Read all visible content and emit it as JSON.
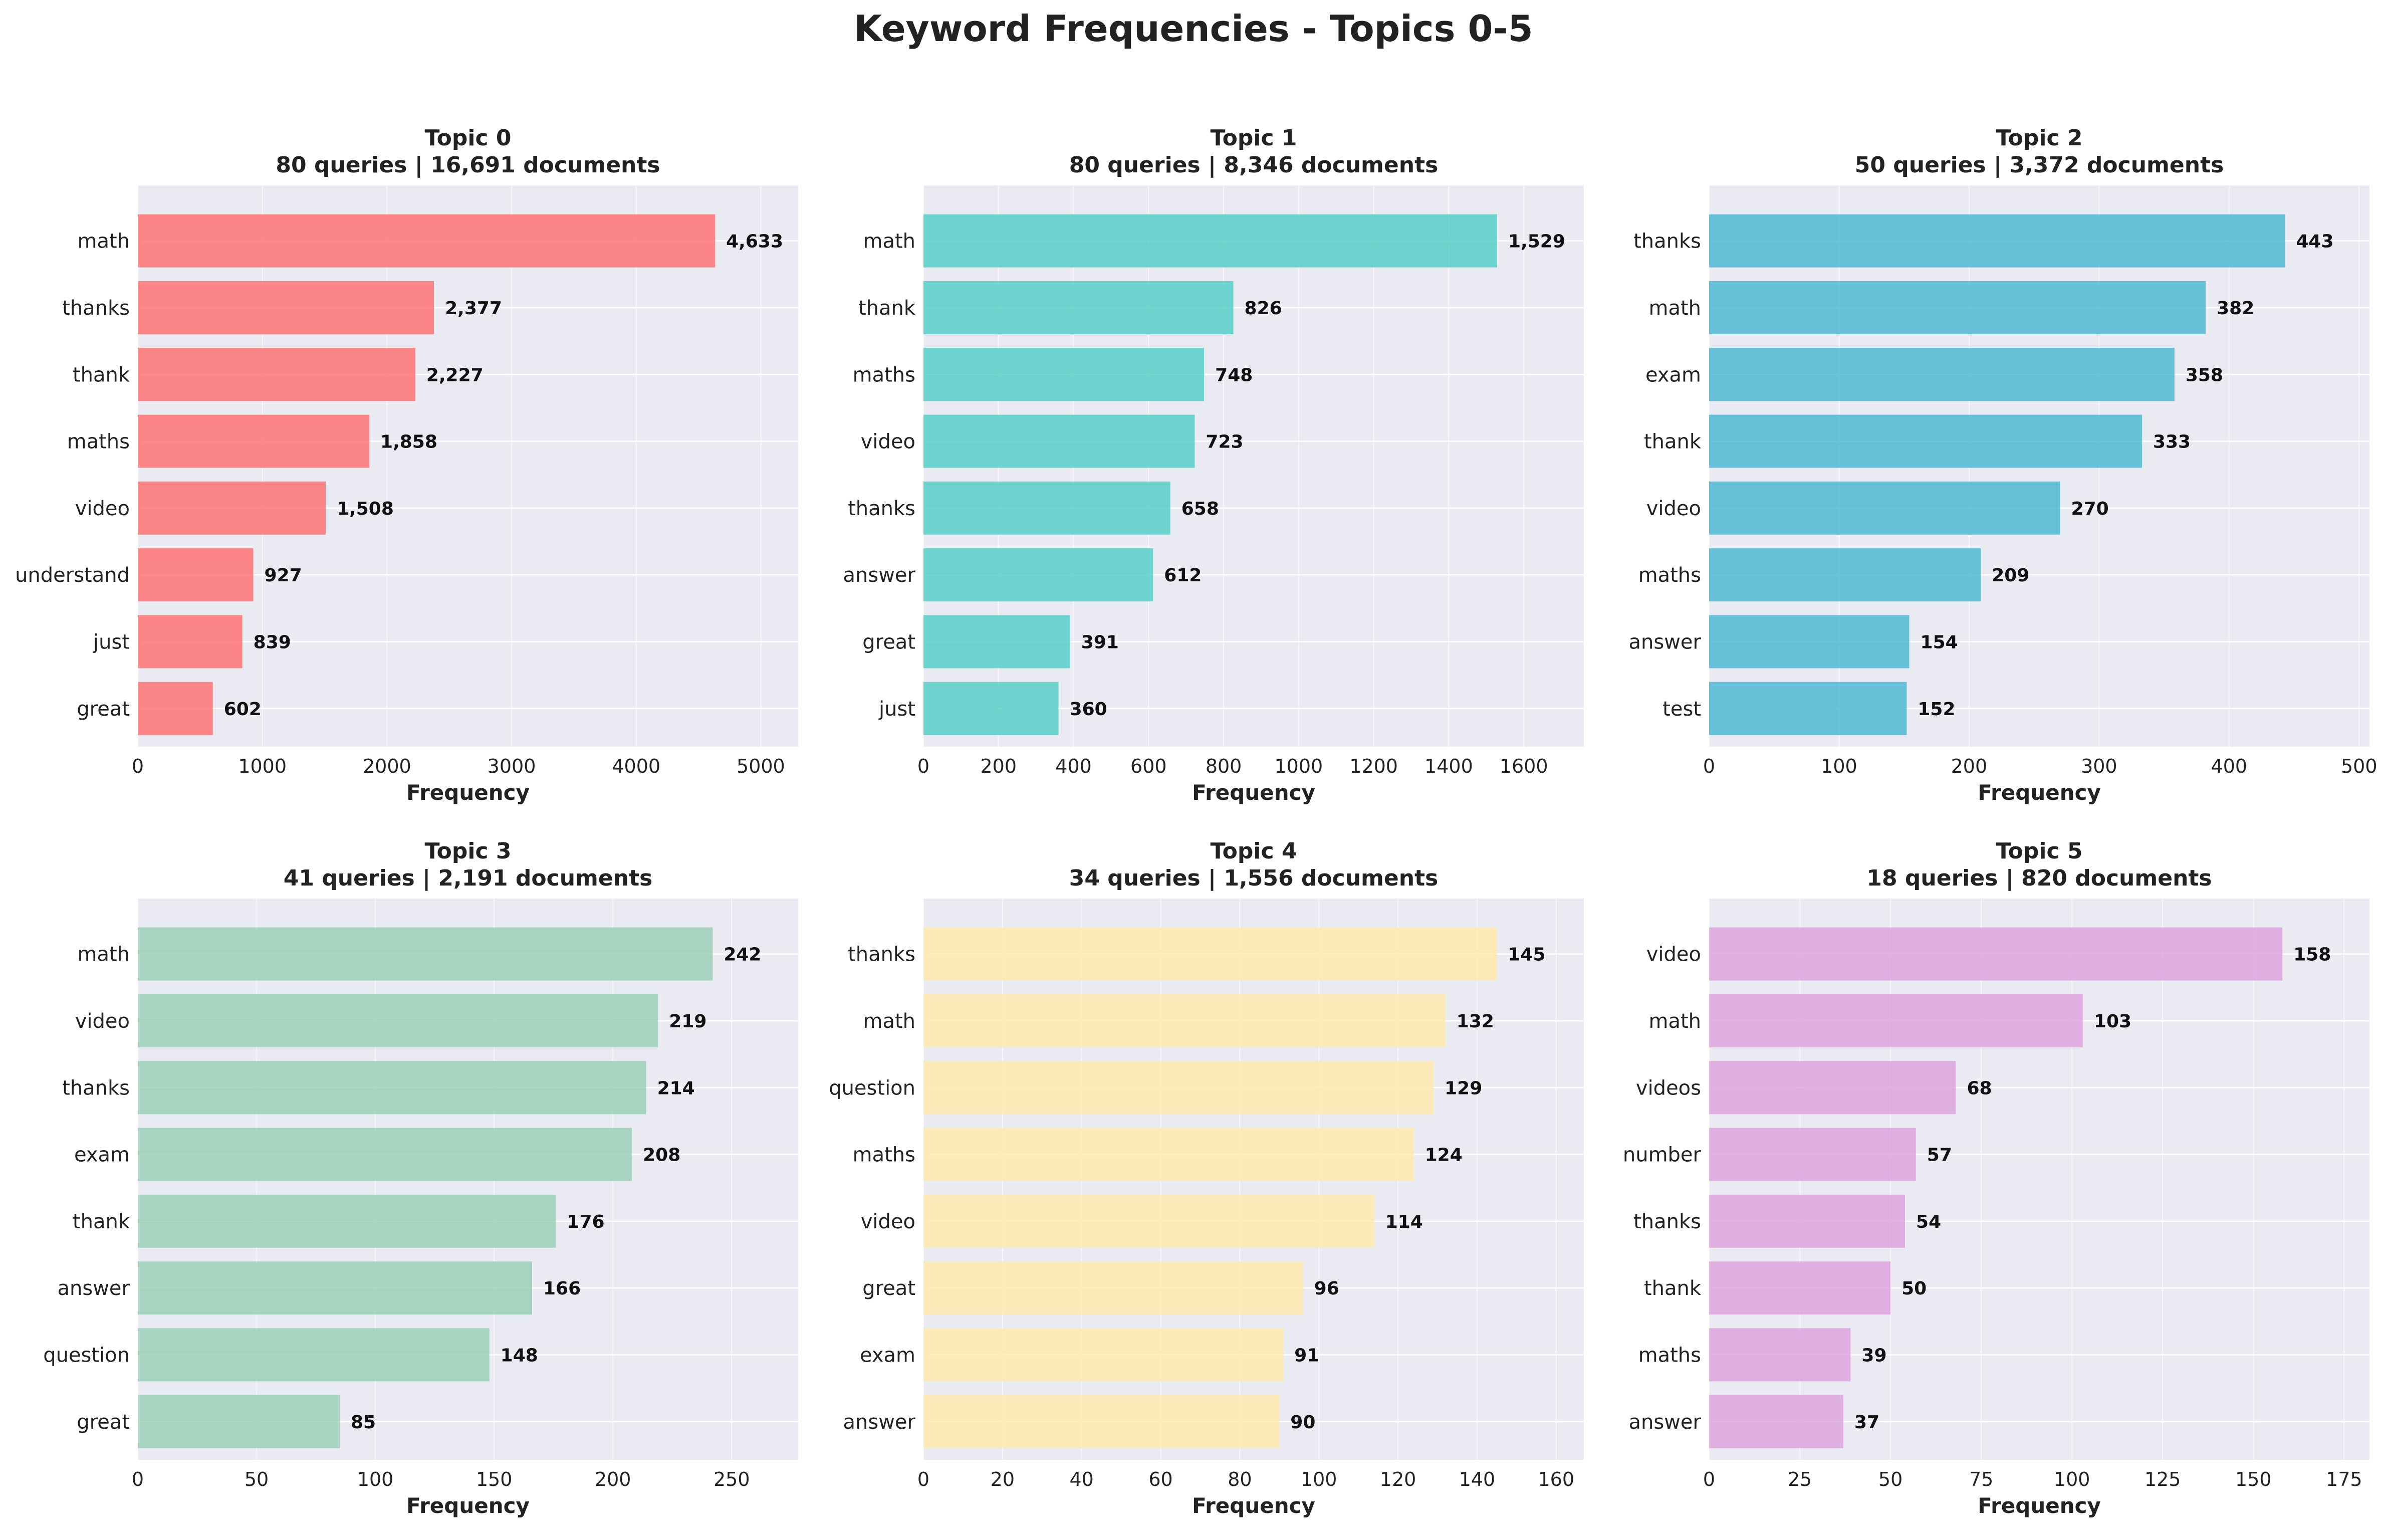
{
  "figure": {
    "title": "Keyword Frequencies - Topics 0-5",
    "background": "#ffffff",
    "axes_background": "#eaeaf2",
    "grid_color": "#ffffff"
  },
  "chart_data": [
    {
      "type": "bar",
      "orientation": "horizontal",
      "title_line1": "Topic 0",
      "title_line2": "80 queries | 16,691 documents",
      "xlabel": "Frequency",
      "ylabel": "",
      "color": "#ff6b6b",
      "categories": [
        "math",
        "thanks",
        "thank",
        "maths",
        "video",
        "understand",
        "just",
        "great"
      ],
      "values": [
        4633,
        2377,
        2227,
        1858,
        1508,
        927,
        839,
        602
      ],
      "value_labels": [
        "4,633",
        "2,377",
        "2,227",
        "1,858",
        "1,508",
        "927",
        "839",
        "602"
      ],
      "xlim": [
        0,
        5300
      ],
      "xticks": [
        0,
        1000,
        2000,
        3000,
        4000,
        5000
      ],
      "grid": true
    },
    {
      "type": "bar",
      "orientation": "horizontal",
      "title_line1": "Topic 1",
      "title_line2": "80 queries | 8,346 documents",
      "xlabel": "Frequency",
      "ylabel": "",
      "color": "#4ecdc4",
      "categories": [
        "math",
        "thank",
        "maths",
        "video",
        "thanks",
        "answer",
        "great",
        "just"
      ],
      "values": [
        1529,
        826,
        748,
        723,
        658,
        612,
        391,
        360
      ],
      "value_labels": [
        "1,529",
        "826",
        "748",
        "723",
        "658",
        "612",
        "391",
        "360"
      ],
      "xlim": [
        0,
        1760
      ],
      "xticks": [
        0,
        200,
        400,
        600,
        800,
        1000,
        1200,
        1400,
        1600
      ],
      "grid": true
    },
    {
      "type": "bar",
      "orientation": "horizontal",
      "title_line1": "Topic 2",
      "title_line2": "50 queries | 3,372 documents",
      "xlabel": "Frequency",
      "ylabel": "",
      "color": "#45b7d1",
      "categories": [
        "thanks",
        "math",
        "exam",
        "thank",
        "video",
        "maths",
        "answer",
        "test"
      ],
      "values": [
        443,
        382,
        358,
        333,
        270,
        209,
        154,
        152
      ],
      "value_labels": [
        "443",
        "382",
        "358",
        "333",
        "270",
        "209",
        "154",
        "152"
      ],
      "xlim": [
        0,
        508
      ],
      "xticks": [
        0,
        100,
        200,
        300,
        400,
        500
      ],
      "grid": true
    },
    {
      "type": "bar",
      "orientation": "horizontal",
      "title_line1": "Topic 3",
      "title_line2": "41 queries | 2,191 documents",
      "xlabel": "Frequency",
      "ylabel": "",
      "color": "#96ceb4",
      "categories": [
        "math",
        "video",
        "thanks",
        "exam",
        "thank",
        "answer",
        "question",
        "great"
      ],
      "values": [
        242,
        219,
        214,
        208,
        176,
        166,
        148,
        85
      ],
      "value_labels": [
        "242",
        "219",
        "214",
        "208",
        "176",
        "166",
        "148",
        "85"
      ],
      "xlim": [
        0,
        278
      ],
      "xticks": [
        0,
        50,
        100,
        150,
        200,
        250
      ],
      "grid": true
    },
    {
      "type": "bar",
      "orientation": "horizontal",
      "title_line1": "Topic 4",
      "title_line2": "34 queries | 1,556 documents",
      "xlabel": "Frequency",
      "ylabel": "",
      "color": "#ffeaa7",
      "categories": [
        "thanks",
        "math",
        "question",
        "maths",
        "video",
        "great",
        "exam",
        "answer"
      ],
      "values": [
        145,
        132,
        129,
        124,
        114,
        96,
        91,
        90
      ],
      "value_labels": [
        "145",
        "132",
        "129",
        "124",
        "114",
        "96",
        "91",
        "90"
      ],
      "xlim": [
        0,
        167
      ],
      "xticks": [
        0,
        20,
        40,
        60,
        80,
        100,
        120,
        140,
        160
      ],
      "grid": true
    },
    {
      "type": "bar",
      "orientation": "horizontal",
      "title_line1": "Topic 5",
      "title_line2": "18 queries | 820 documents",
      "xlabel": "Frequency",
      "ylabel": "",
      "color": "#dda0dd",
      "categories": [
        "video",
        "math",
        "videos",
        "number",
        "thanks",
        "thank",
        "maths",
        "answer"
      ],
      "values": [
        158,
        103,
        68,
        57,
        54,
        50,
        39,
        37
      ],
      "value_labels": [
        "158",
        "103",
        "68",
        "57",
        "54",
        "50",
        "39",
        "37"
      ],
      "xlim": [
        0,
        182
      ],
      "xticks": [
        0,
        25,
        50,
        75,
        100,
        125,
        150,
        175
      ],
      "grid": true
    }
  ]
}
